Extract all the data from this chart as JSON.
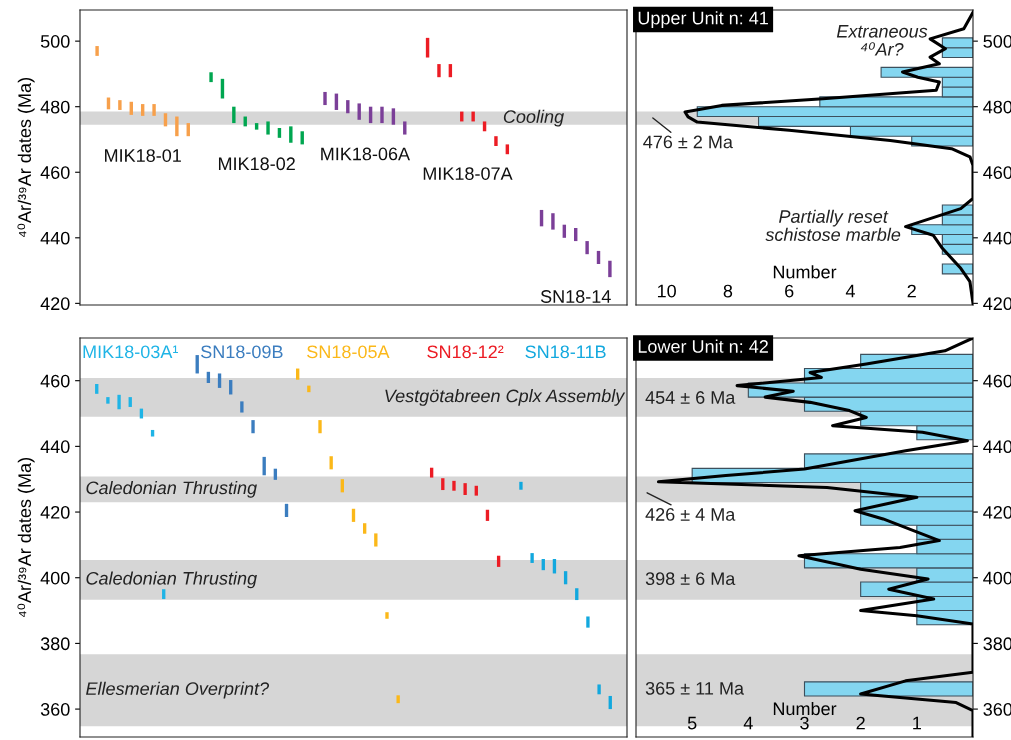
{
  "chart_data": [
    {
      "type": "bar",
      "ylabel": "⁴⁰Ar/³⁹Ar dates (Ma)",
      "ylim": [
        419.5,
        509.5
      ],
      "yticks": [
        420,
        440,
        460,
        480,
        500
      ],
      "tick_labels": "y",
      "categories": [
        null,
        null,
        null,
        null,
        null,
        null,
        null,
        null,
        null,
        null,
        null,
        null,
        null,
        null,
        null,
        null,
        null,
        null,
        null,
        null,
        null,
        null,
        null,
        null,
        null,
        null,
        null,
        null,
        null,
        null,
        null,
        null,
        null,
        null,
        null,
        null,
        null,
        null,
        null,
        null,
        null,
        null,
        null,
        null,
        null,
        null,
        null,
        null
      ],
      "bands": [
        {
          "axis": "y",
          "from": 474.5,
          "to": 478.5,
          "label": "Cooling",
          "color": "#d6d6d6"
        }
      ],
      "series": [
        {
          "name": "MIK18-01",
          "color": "#f7a04b",
          "base": [
            null,
            495.5,
            479.2,
            479,
            477.5,
            477.2,
            477.2,
            474,
            471,
            471,
            null,
            null,
            null,
            null,
            null,
            null,
            null,
            null,
            null,
            null,
            null,
            null,
            null,
            null,
            null,
            null,
            null,
            null,
            null,
            null,
            null,
            null,
            null,
            null,
            null,
            null,
            null,
            null,
            null,
            null,
            null,
            null,
            null,
            null,
            null,
            null,
            null,
            null
          ],
          "values": [
            null,
            3,
            3.6,
            3,
            4,
            3.6,
            3.6,
            4,
            6,
            4,
            null,
            null,
            null,
            null,
            null,
            null,
            null,
            null,
            null,
            null,
            null,
            null,
            null,
            null,
            null,
            null,
            null,
            null,
            null,
            null,
            null,
            null,
            null,
            null,
            null,
            null,
            null,
            null,
            null,
            null,
            null,
            null,
            null,
            null,
            null,
            null,
            null,
            null
          ]
        },
        {
          "name": "MIK18-02",
          "color": "#00a650",
          "base": [
            null,
            null,
            null,
            null,
            null,
            null,
            null,
            null,
            null,
            null,
            null,
            487.5,
            482.5,
            475,
            474,
            473,
            471.5,
            470.5,
            469,
            468.5,
            null,
            null,
            null,
            null,
            null,
            null,
            null,
            null,
            null,
            null,
            null,
            null,
            null,
            null,
            null,
            null,
            null,
            null,
            null,
            null,
            null,
            null,
            null,
            null,
            null,
            null,
            null,
            null
          ],
          "values": [
            null,
            null,
            null,
            null,
            null,
            null,
            null,
            null,
            null,
            null,
            null,
            3,
            6,
            5,
            3,
            2,
            4,
            3,
            5,
            4,
            null,
            null,
            null,
            null,
            null,
            null,
            null,
            null,
            null,
            null,
            null,
            null,
            null,
            null,
            null,
            null,
            null,
            null,
            null,
            null,
            null,
            null,
            null,
            null,
            null,
            null,
            null,
            null
          ]
        },
        {
          "name": "MIK18-06A",
          "color": "#7b3f98",
          "base": [
            null,
            null,
            null,
            null,
            null,
            null,
            null,
            null,
            null,
            null,
            null,
            null,
            null,
            null,
            null,
            null,
            null,
            null,
            null,
            null,
            null,
            480.5,
            479,
            478,
            476,
            475,
            475,
            474.5,
            471.5,
            null,
            null,
            null,
            null,
            null,
            null,
            null,
            null,
            null,
            null,
            null,
            null,
            null,
            null,
            null,
            null,
            null,
            null,
            null
          ],
          "values": [
            null,
            null,
            null,
            null,
            null,
            null,
            null,
            null,
            null,
            null,
            null,
            null,
            null,
            null,
            null,
            null,
            null,
            null,
            null,
            null,
            null,
            4,
            5,
            4,
            5,
            5,
            5,
            5,
            4,
            null,
            null,
            null,
            null,
            null,
            null,
            null,
            null,
            null,
            null,
            null,
            null,
            null,
            null,
            null,
            null,
            null,
            null,
            null
          ]
        },
        {
          "name": "MIK18-07A",
          "color": "#ec1c24",
          "base": [
            null,
            null,
            null,
            null,
            null,
            null,
            null,
            null,
            null,
            null,
            null,
            null,
            null,
            null,
            null,
            null,
            null,
            null,
            null,
            null,
            null,
            null,
            null,
            null,
            null,
            null,
            null,
            null,
            null,
            null,
            495,
            489,
            489,
            475.5,
            475.5,
            472.5,
            468,
            465.5,
            null,
            null,
            null,
            null,
            null,
            null,
            null,
            null,
            null,
            null
          ],
          "values": [
            null,
            null,
            null,
            null,
            null,
            null,
            null,
            null,
            null,
            null,
            null,
            null,
            null,
            null,
            null,
            null,
            null,
            null,
            null,
            null,
            null,
            null,
            null,
            null,
            null,
            null,
            null,
            null,
            null,
            null,
            6,
            4,
            4,
            3,
            3,
            3,
            3,
            3,
            null,
            null,
            null,
            null,
            null,
            null,
            null,
            null,
            null,
            null
          ]
        },
        {
          "name": "SN18-14",
          "color": "#7b3f98",
          "base": [
            null,
            null,
            null,
            null,
            null,
            null,
            null,
            null,
            null,
            null,
            null,
            null,
            null,
            null,
            null,
            null,
            null,
            null,
            null,
            null,
            null,
            null,
            null,
            null,
            null,
            null,
            null,
            null,
            null,
            null,
            null,
            null,
            null,
            null,
            null,
            null,
            null,
            null,
            null,
            null,
            443.5,
            442.5,
            440,
            439,
            435,
            432,
            428,
            null
          ],
          "values": [
            null,
            null,
            null,
            null,
            null,
            null,
            null,
            null,
            null,
            null,
            null,
            null,
            null,
            null,
            null,
            null,
            null,
            null,
            null,
            null,
            null,
            null,
            null,
            null,
            null,
            null,
            null,
            null,
            null,
            null,
            null,
            null,
            null,
            null,
            null,
            null,
            null,
            null,
            null,
            null,
            5,
            5,
            4,
            4,
            4,
            4,
            5,
            null
          ]
        }
      ]
    },
    {
      "type": "histogram",
      "orientation": "horizontal",
      "title": "Upper Unit n: 41",
      "xlabel": "Number",
      "color": "#84d6f0",
      "bins": [
        429,
        432,
        435,
        438,
        441,
        444,
        447,
        450,
        453,
        456,
        459,
        462,
        465,
        468,
        471,
        474,
        477,
        480,
        483,
        486,
        489,
        492,
        495,
        498,
        501
      ],
      "values": [
        1,
        0,
        1,
        1,
        2,
        1,
        1,
        0,
        0,
        0,
        0,
        0,
        0,
        2,
        4,
        7,
        9,
        5,
        1,
        1,
        3,
        0,
        1,
        1
      ],
      "xlim": [
        11,
        0
      ],
      "xticks": [
        10,
        8,
        6,
        4,
        2
      ],
      "ylim": [
        419.5,
        509.5
      ],
      "yticks": [
        420,
        440,
        460,
        480,
        500
      ],
      "bands": [
        {
          "axis": "y",
          "from": 474.5,
          "to": 478.5,
          "color": "#d6d6d6"
        }
      ],
      "series": [
        {
          "type": "line",
          "color": "#000000",
          "x": [
            508.8,
            503.8,
            500.7,
            497.7,
            495.1,
            493.1,
            490.6,
            489,
            487.5,
            485,
            482.4,
            480.4,
            478.4,
            476.9,
            475.3,
            472.8,
            469.7,
            467.2,
            464.7,
            462.1,
            452,
            448.9,
            443.4,
            440.8,
            436.8,
            430.7,
            426.6,
            420
          ],
          "values": [
            0,
            0.3,
            1.4,
            0.9,
            1.4,
            1.1,
            2.3,
            1.8,
            1.1,
            1.2,
            4.9,
            8.2,
            9.4,
            9.3,
            9,
            6,
            2.7,
            0.7,
            0.1,
            0,
            0,
            0.4,
            2.2,
            1.3,
            1,
            0.4,
            0.1,
            0
          ]
        }
      ],
      "annotations": [
        "476 ± 2 Ma",
        "Extraneous\n⁴⁰Ar?",
        "Partially reset\nschistose marble"
      ]
    },
    {
      "type": "bar",
      "ylabel": "⁴⁰Ar/³⁹Ar dates (Ma)",
      "ylim": [
        351.5,
        473
      ],
      "yticks": [
        360,
        380,
        400,
        420,
        440,
        460
      ],
      "tick_labels": "y",
      "categories": [
        null,
        null,
        null,
        null,
        null,
        null,
        null,
        null,
        null,
        null,
        null,
        null,
        null,
        null,
        null,
        null,
        null,
        null,
        null,
        null,
        null,
        null,
        null,
        null,
        null,
        null,
        null,
        null,
        null,
        null,
        null,
        null,
        null,
        null,
        null,
        null,
        null,
        null,
        null,
        null,
        null,
        null,
        null,
        null,
        null,
        null,
        null,
        null,
        null
      ],
      "bands": [
        {
          "axis": "y",
          "from": 449,
          "to": 460.8,
          "label": "Vestgötabreen Cplx Assembly",
          "color": "#d6d6d6"
        },
        {
          "axis": "y",
          "from": 423,
          "to": 430.8,
          "label": "Caledonian Thrusting",
          "color": "#d6d6d6"
        },
        {
          "axis": "y",
          "from": 393.3,
          "to": 405.4,
          "label": "Caledonian Thrusting",
          "color": "#d6d6d6"
        },
        {
          "axis": "y",
          "from": 354.8,
          "to": 376.7,
          "label": "Ellesmerian Overprint?",
          "color": "#d6d6d6"
        }
      ],
      "series": [
        {
          "name": "MIK18-03A¹",
          "color": "#1fb4e6",
          "base": [
            null,
            456,
            453,
            451.3,
            452,
            448.5,
            443,
            393.5,
            null,
            null,
            null,
            null,
            null,
            null,
            null,
            null,
            null,
            null,
            null,
            null,
            null,
            null,
            null,
            null,
            null,
            null,
            null,
            null,
            null,
            null,
            null,
            null,
            null,
            null,
            null,
            null,
            null,
            null,
            null,
            null,
            null,
            null,
            null,
            null,
            null,
            null,
            null,
            null,
            null
          ],
          "values": [
            null,
            3,
            2,
            4.4,
            3,
            3,
            2,
            3,
            null,
            null,
            null,
            null,
            null,
            null,
            null,
            null,
            null,
            null,
            null,
            null,
            null,
            null,
            null,
            null,
            null,
            null,
            null,
            null,
            null,
            null,
            null,
            null,
            null,
            null,
            null,
            null,
            null,
            null,
            null,
            null,
            null,
            null,
            null,
            null,
            null,
            null,
            null,
            null,
            null
          ]
        },
        {
          "name": "SN18-09B",
          "color": "#3b7dbf",
          "base": [
            null,
            null,
            null,
            null,
            null,
            null,
            null,
            null,
            null,
            null,
            462.2,
            459.3,
            457.8,
            455.8,
            450.3,
            444,
            431.2,
            429.8,
            418.5,
            null,
            null,
            null,
            null,
            null,
            null,
            null,
            null,
            null,
            null,
            null,
            null,
            null,
            null,
            null,
            null,
            null,
            null,
            null,
            null,
            null,
            null,
            null,
            null,
            null,
            null,
            null,
            null,
            null,
            null
          ],
          "values": [
            null,
            null,
            null,
            null,
            null,
            null,
            null,
            null,
            null,
            null,
            5.6,
            3.4,
            4.4,
            4.4,
            3.4,
            4,
            5.6,
            3.4,
            4,
            null,
            null,
            null,
            null,
            null,
            null,
            null,
            null,
            null,
            null,
            null,
            null,
            null,
            null,
            null,
            null,
            null,
            null,
            null,
            null,
            null,
            null,
            null,
            null,
            null,
            null,
            null,
            null,
            null,
            null
          ]
        },
        {
          "name": "SN18-05A",
          "color": "#fbb819",
          "base": [
            null,
            null,
            null,
            null,
            null,
            null,
            null,
            null,
            null,
            null,
            null,
            null,
            null,
            null,
            null,
            null,
            null,
            null,
            null,
            460.3,
            456.5,
            444,
            433,
            426,
            417,
            413.4,
            409.5,
            387.5,
            361.8,
            null,
            null,
            null,
            null,
            null,
            null,
            null,
            null,
            null,
            null,
            null,
            null,
            null,
            null,
            null,
            null,
            null,
            null,
            null,
            null
          ],
          "values": [
            null,
            null,
            null,
            null,
            null,
            null,
            null,
            null,
            null,
            null,
            null,
            null,
            null,
            null,
            null,
            null,
            null,
            null,
            null,
            3.4,
            2,
            4,
            4,
            4,
            4,
            3.2,
            4,
            2,
            2.4,
            null,
            null,
            null,
            null,
            null,
            null,
            null,
            null,
            null,
            null,
            null,
            null,
            null,
            null,
            null,
            null,
            null,
            null,
            null,
            null
          ]
        },
        {
          "name": "SN18-12²",
          "color": "#ec1c24",
          "base": [
            null,
            null,
            null,
            null,
            null,
            null,
            null,
            null,
            null,
            null,
            null,
            null,
            null,
            null,
            null,
            null,
            null,
            null,
            null,
            null,
            null,
            null,
            null,
            null,
            null,
            null,
            null,
            null,
            null,
            null,
            null,
            430.5,
            426.7,
            426.5,
            425.2,
            425,
            417.3,
            403.3,
            null,
            null,
            null,
            null,
            null,
            null,
            null,
            null,
            null,
            null,
            null
          ],
          "values": [
            null,
            null,
            null,
            null,
            null,
            null,
            null,
            null,
            null,
            null,
            null,
            null,
            null,
            null,
            null,
            null,
            null,
            null,
            null,
            null,
            null,
            null,
            null,
            null,
            null,
            null,
            null,
            null,
            null,
            null,
            null,
            3,
            3.6,
            3,
            3.6,
            3,
            3.4,
            3.4,
            null,
            null,
            null,
            null,
            null,
            null,
            null,
            null,
            null,
            null,
            null
          ]
        },
        {
          "name": "SN18-11B",
          "color": "#12a8de",
          "base": [
            null,
            null,
            null,
            null,
            null,
            null,
            null,
            null,
            null,
            null,
            null,
            null,
            null,
            null,
            null,
            null,
            null,
            null,
            null,
            null,
            null,
            null,
            null,
            null,
            null,
            null,
            null,
            null,
            null,
            null,
            null,
            null,
            null,
            null,
            null,
            null,
            null,
            null,
            null,
            426.8,
            404.5,
            402.3,
            401.3,
            398,
            393.2,
            384.8,
            364.5,
            360,
            null
          ],
          "values": [
            null,
            null,
            null,
            null,
            null,
            null,
            null,
            null,
            null,
            null,
            null,
            null,
            null,
            null,
            null,
            null,
            null,
            null,
            null,
            null,
            null,
            null,
            null,
            null,
            null,
            null,
            null,
            null,
            null,
            null,
            null,
            null,
            null,
            null,
            null,
            null,
            null,
            null,
            null,
            2.4,
            3,
            3.4,
            4.4,
            4,
            3.6,
            3.4,
            3,
            4,
            null
          ]
        }
      ]
    },
    {
      "type": "histogram",
      "orientation": "horizontal",
      "title": "Lower Unit n: 42",
      "xlabel": "Number",
      "color": "#84d6f0",
      "bins": [
        364.0,
        368.3,
        372.7,
        377.0,
        381.3,
        385.7,
        390.0,
        394.3,
        398.7,
        403.0,
        407.3,
        411.7,
        416.0,
        420.3,
        424.7,
        429.0,
        433.3,
        437.7,
        442.0,
        446.3,
        450.7,
        455.0,
        459.3,
        463.7,
        468.0
      ],
      "values": [
        3,
        0,
        0,
        0,
        0,
        1,
        1,
        2,
        1,
        3,
        1,
        1,
        2,
        2,
        2,
        5,
        3,
        0,
        1,
        2,
        3,
        4,
        3,
        2
      ],
      "xlim": [
        6,
        0
      ],
      "xticks": [
        5,
        4,
        3,
        2,
        1
      ],
      "ylim": [
        351.5,
        473
      ],
      "yticks": [
        360,
        380,
        400,
        420,
        440,
        460
      ],
      "bands": [
        {
          "axis": "y",
          "from": 449,
          "to": 460.8,
          "color": "#d6d6d6"
        },
        {
          "axis": "y",
          "from": 423,
          "to": 430.8,
          "color": "#d6d6d6"
        },
        {
          "axis": "y",
          "from": 393.3,
          "to": 405.4,
          "color": "#d6d6d6"
        },
        {
          "axis": "y",
          "from": 354.8,
          "to": 376.7,
          "color": "#d6d6d6"
        }
      ],
      "series": [
        {
          "type": "line",
          "color": "#000000",
          "x": [
            473,
            469.1,
            465.1,
            462.5,
            461,
            458.5,
            456.8,
            455,
            453.4,
            450.9,
            448.8,
            446.3,
            444.3,
            441.7,
            438.7,
            433.1,
            431.1,
            429.2,
            427.5,
            424.5,
            420.4,
            417.9,
            411.3,
            409.2,
            406.7,
            402.6,
            399.6,
            396.5,
            393.5,
            390,
            388.4,
            385.9,
            380.3,
            371.2,
            368.6,
            364.6,
            362,
            359.5,
            351.9
          ],
          "values": [
            0,
            0.5,
            1.9,
            2.9,
            2.7,
            4.2,
            3.2,
            3.7,
            2.9,
            2.2,
            1.9,
            2.5,
            0.9,
            0.1,
            1.2,
            3,
            4.4,
            5.6,
            2.6,
            1,
            2.1,
            1.6,
            0.6,
            1.3,
            3.1,
            2,
            0.8,
            1.5,
            0.7,
            2,
            1,
            0,
            0,
            0,
            1.2,
            2,
            0.3,
            0,
            0
          ]
        }
      ],
      "annotations": [
        "454 ± 6 Ma",
        "426 ± 4 Ma",
        "398 ± 6 Ma",
        "365 ± 11 Ma"
      ]
    }
  ]
}
